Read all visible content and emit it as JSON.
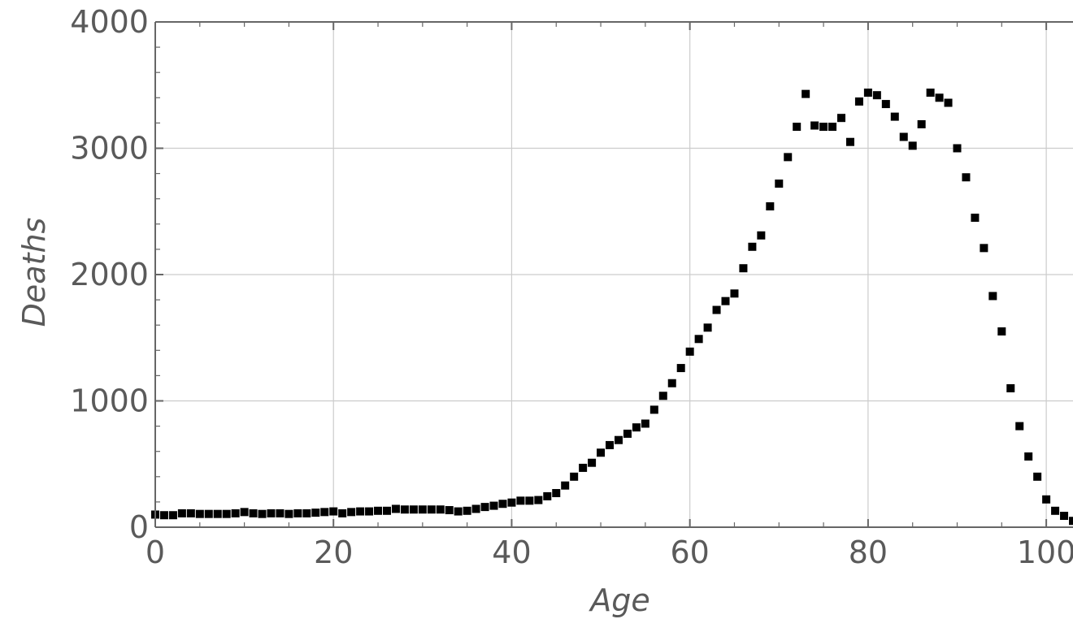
{
  "chart_data": {
    "type": "scatter",
    "xlabel": "Age",
    "ylabel": "Deaths",
    "xlim": [
      0,
      103
    ],
    "ylim": [
      0,
      4000
    ],
    "x_ticks": [
      0,
      20,
      40,
      60,
      80,
      100
    ],
    "y_ticks": [
      0,
      1000,
      2000,
      3000,
      4000
    ],
    "x_tick_labels": [
      "0",
      "20",
      "40",
      "60",
      "80",
      "100"
    ],
    "y_tick_labels": [
      "0",
      "1000",
      "2000",
      "3000",
      "4000"
    ],
    "grid": true,
    "marker": "square",
    "marker_color": "#000000",
    "series": [
      {
        "x": [
          0,
          1,
          2,
          3,
          4,
          5,
          6,
          7,
          8,
          9,
          10,
          11,
          12,
          13,
          14,
          15,
          16,
          17,
          18,
          19,
          20,
          21,
          22,
          23,
          24,
          25,
          26,
          27,
          28,
          29,
          30,
          31,
          32,
          33,
          34,
          35,
          36,
          37,
          38,
          39,
          40,
          41,
          42,
          43,
          44,
          45,
          46,
          47,
          48,
          49,
          50,
          51,
          52,
          53,
          54,
          55,
          56,
          57,
          58,
          59,
          60,
          61,
          62,
          63,
          64,
          65,
          66,
          67,
          68,
          69,
          70,
          71,
          72,
          73,
          74,
          75,
          76,
          77,
          78,
          79,
          80,
          81,
          82,
          83,
          84,
          85,
          86,
          87,
          88,
          89,
          90,
          91,
          92,
          93,
          94,
          95,
          96,
          97,
          98,
          99,
          100,
          101,
          102,
          103
        ],
        "y": [
          100,
          95,
          95,
          110,
          110,
          105,
          105,
          105,
          105,
          110,
          120,
          110,
          105,
          110,
          110,
          105,
          110,
          110,
          115,
          120,
          125,
          110,
          120,
          125,
          125,
          130,
          130,
          145,
          140,
          140,
          140,
          140,
          140,
          135,
          125,
          130,
          145,
          160,
          170,
          185,
          195,
          210,
          210,
          215,
          245,
          270,
          330,
          400,
          470,
          510,
          590,
          650,
          690,
          740,
          790,
          820,
          930,
          1040,
          1140,
          1260,
          1390,
          1490,
          1580,
          1720,
          1790,
          1850,
          2050,
          2220,
          2310,
          2540,
          2720,
          2930,
          3170,
          3430,
          3180,
          3170,
          3170,
          3240,
          3050,
          3370,
          3440,
          3420,
          3350,
          3250,
          3090,
          3020,
          3190,
          3440,
          3400,
          3360,
          3000,
          2770,
          2450,
          2210,
          1830,
          1550,
          1100,
          800,
          560,
          400,
          220,
          130,
          90,
          50
        ]
      }
    ]
  }
}
